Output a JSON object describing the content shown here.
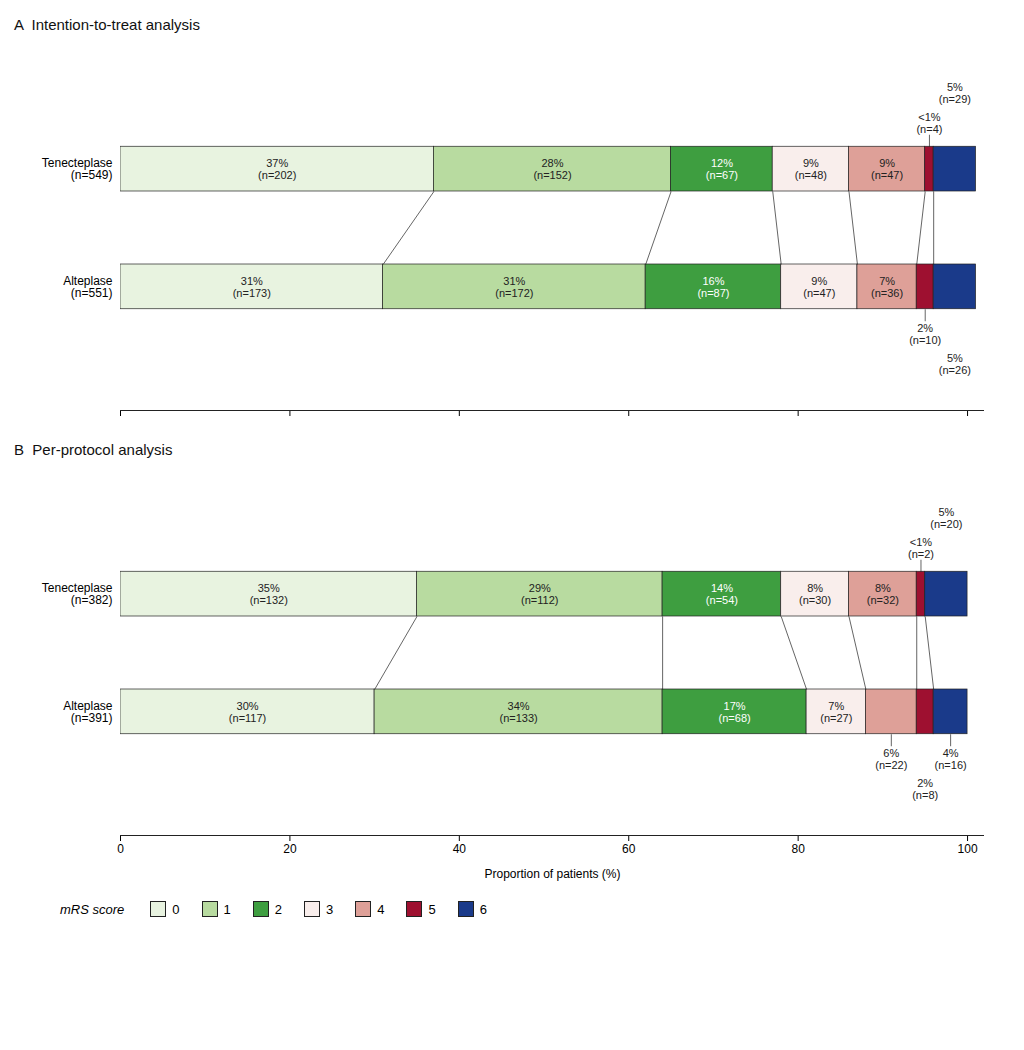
{
  "chart_data": [
    {
      "type": "bar",
      "orientation": "horizontal",
      "stacked": true,
      "data_labels": true,
      "title": "A  Intention-to-treat analysis",
      "categories": [
        "Tenecteplase\n(n=549)",
        "Alteplase\n(n=551)"
      ],
      "series": [
        {
          "name": "0",
          "color": "#e8f3e0",
          "values": [
            37,
            31
          ],
          "value_labels": [
            "37%\n(n=202)",
            "31%\n(n=173)"
          ]
        },
        {
          "name": "1",
          "color": "#b8dba0",
          "values": [
            28,
            31
          ],
          "value_labels": [
            "28%\n(n=152)",
            "31%\n(n=172)"
          ]
        },
        {
          "name": "2",
          "color": "#3e9e40",
          "values": [
            12,
            16
          ],
          "value_labels": [
            "12%\n(n=67)",
            "16%\n(n=87)"
          ]
        },
        {
          "name": "3",
          "color": "#f9eeec",
          "values": [
            9,
            9
          ],
          "value_labels": [
            "9%\n(n=48)",
            "9%\n(n=47)"
          ]
        },
        {
          "name": "4",
          "color": "#dea098",
          "values": [
            9,
            7
          ],
          "value_labels": [
            "9%\n(n=47)",
            "7%\n(n=36)"
          ]
        },
        {
          "name": "5",
          "color": "#9e1030",
          "values": [
            1,
            2
          ],
          "value_labels": [
            "<1%\n(n=4)",
            "2%\n(n=10)"
          ]
        },
        {
          "name": "6",
          "color": "#1a3a8a",
          "values": [
            5,
            5
          ],
          "value_labels": [
            "5%\n(n=29)",
            "5%\n(n=26)"
          ]
        }
      ],
      "xlim": [
        0,
        102
      ],
      "xticks": [
        0,
        20,
        40,
        60,
        80,
        100
      ],
      "tick_labels": "y"
    },
    {
      "type": "bar",
      "orientation": "horizontal",
      "stacked": true,
      "data_labels": true,
      "title": "B  Per-protocol analysis",
      "categories": [
        "Tenecteplase\n(n=382)",
        "Alteplase\n(n=391)"
      ],
      "series": [
        {
          "name": "0",
          "color": "#e8f3e0",
          "values": [
            35,
            30
          ],
          "value_labels": [
            "35%\n(n=132)",
            "30%\n(n=117)"
          ]
        },
        {
          "name": "1",
          "color": "#b8dba0",
          "values": [
            29,
            34
          ],
          "value_labels": [
            "29%\n(n=112)",
            "34%\n(n=133)"
          ]
        },
        {
          "name": "2",
          "color": "#3e9e40",
          "values": [
            14,
            17
          ],
          "value_labels": [
            "14%\n(n=54)",
            "17%\n(n=68)"
          ]
        },
        {
          "name": "3",
          "color": "#f9eeec",
          "values": [
            8,
            7
          ],
          "value_labels": [
            "8%\n(n=30)",
            "7%\n(n=27)"
          ]
        },
        {
          "name": "4",
          "color": "#dea098",
          "values": [
            8,
            6
          ],
          "value_labels": [
            "8%\n(n=32)",
            "6%\n(n=22)"
          ]
        },
        {
          "name": "5",
          "color": "#9e1030",
          "values": [
            1,
            2
          ],
          "value_labels": [
            "<1%\n(n=2)",
            "2%\n(n=8)"
          ]
        },
        {
          "name": "6",
          "color": "#1a3a8a",
          "values": [
            5,
            4
          ],
          "value_labels": [
            "5%\n(n=20)",
            "4%\n(n=16)"
          ]
        }
      ],
      "xlim": [
        0,
        102
      ],
      "xticks": [
        0,
        20,
        40,
        60,
        80,
        100
      ],
      "xlabel": "Proportion of patients (%)",
      "legend": "lower left",
      "legend_title": "mRS score"
    }
  ]
}
